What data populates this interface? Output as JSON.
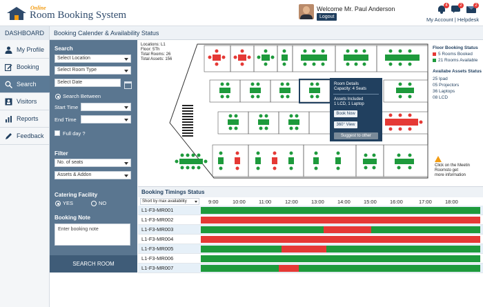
{
  "app": {
    "logo_small": "Online",
    "logo_title": "Room Booking System"
  },
  "user": {
    "welcome": "Welcome Mr. Paul Anderson",
    "logout": "Logout",
    "links": "My Account | Helpdesk",
    "notifications": [
      {
        "icon": "bell-icon",
        "count": "4"
      },
      {
        "icon": "chat-icon",
        "count": "2"
      },
      {
        "icon": "mail-icon",
        "count": "2"
      }
    ]
  },
  "nav": {
    "dashboard": "DASHBOARD",
    "page_title": "Booking Calender & Availability Status",
    "items": [
      {
        "icon": "user-icon",
        "label": "My Profile",
        "active": false
      },
      {
        "icon": "edit-icon",
        "label": "Booking",
        "active": false
      },
      {
        "icon": "search-icon",
        "label": "Search",
        "active": true
      },
      {
        "icon": "visitors-icon",
        "label": "Visitors",
        "active": false
      },
      {
        "icon": "chart-icon",
        "label": "Reports",
        "active": false
      },
      {
        "icon": "feedback-icon",
        "label": "Feedback",
        "active": false
      }
    ]
  },
  "search": {
    "title": "Search",
    "location": "Select Location",
    "room_type": "Select Room Type",
    "date": "Select Date",
    "search_between": "Search Between",
    "start_time_label": "Start Time",
    "end_time_label": "End Time",
    "full_day": "Full day ?",
    "filter_title": "Filter",
    "seats": "No. of seats",
    "assets": "Assets & Addon",
    "catering_title": "Catering Facility",
    "yes": "YES",
    "no": "NO",
    "note_title": "Booking Note",
    "note_placeholder": "Enter booking note",
    "submit": "SEARCH ROOM"
  },
  "floor": {
    "info": [
      "Locations: L1",
      "Floor: 5Th",
      "Total Rooms: 26",
      "Total Assets: 156"
    ],
    "popup": {
      "title": "Room Details",
      "capacity": "Capacity: 4 Seats",
      "assets_title": "Assets Included",
      "assets": "1 LCD, 1 Laptop",
      "book_now": "Book Now",
      "view_360": "360° View",
      "suggest": "Suggest to other"
    },
    "legend": {
      "status_title": "Floor Booking Status",
      "booked": "5 Rooms Booked",
      "available": "21 Rooms Available",
      "booked_color": "#e53935",
      "available_color": "#1e9a3c",
      "assets_title": "Availabe Assets Status",
      "assets": [
        "25 Ipad",
        "05 Projectors",
        "36 Laptops",
        "08 LCD"
      ]
    },
    "warning": [
      "Click on the Meetin",
      "Roomsto get",
      "more information"
    ]
  },
  "timings": {
    "title": "Booking Timings Status",
    "sort_label": "Short by max availability",
    "ticks": [
      "9:00",
      "10:00",
      "11:00",
      "12:00",
      "13:00",
      "14:00",
      "15:00",
      "16:00",
      "17:00",
      "18:00"
    ],
    "rows": [
      {
        "room": "L1-F3-MR001",
        "segments": [
          {
            "from": 0,
            "to": 1,
            "state": "available"
          }
        ]
      },
      {
        "room": "L1-F3-MR002",
        "segments": [
          {
            "from": 0,
            "to": 1,
            "state": "booked"
          }
        ]
      },
      {
        "room": "L1-F3-MR003",
        "segments": [
          {
            "from": 0,
            "to": 0.44,
            "state": "available"
          },
          {
            "from": 0.44,
            "to": 0.61,
            "state": "booked"
          },
          {
            "from": 0.61,
            "to": 1,
            "state": "available"
          }
        ]
      },
      {
        "room": "L1-F3-MR004",
        "segments": [
          {
            "from": 0,
            "to": 1,
            "state": "booked"
          }
        ]
      },
      {
        "room": "L1-F3-MR005",
        "segments": [
          {
            "from": 0,
            "to": 0.29,
            "state": "available"
          },
          {
            "from": 0.29,
            "to": 0.45,
            "state": "booked"
          },
          {
            "from": 0.45,
            "to": 1,
            "state": "available"
          }
        ]
      },
      {
        "room": "L1-F3-MR006",
        "segments": [
          {
            "from": 0,
            "to": 1,
            "state": "available"
          }
        ]
      },
      {
        "room": "L1-F3-MR007",
        "segments": [
          {
            "from": 0,
            "to": 0.28,
            "state": "available"
          },
          {
            "from": 0.28,
            "to": 0.35,
            "state": "booked"
          },
          {
            "from": 0.35,
            "to": 1,
            "state": "available"
          }
        ]
      }
    ]
  }
}
